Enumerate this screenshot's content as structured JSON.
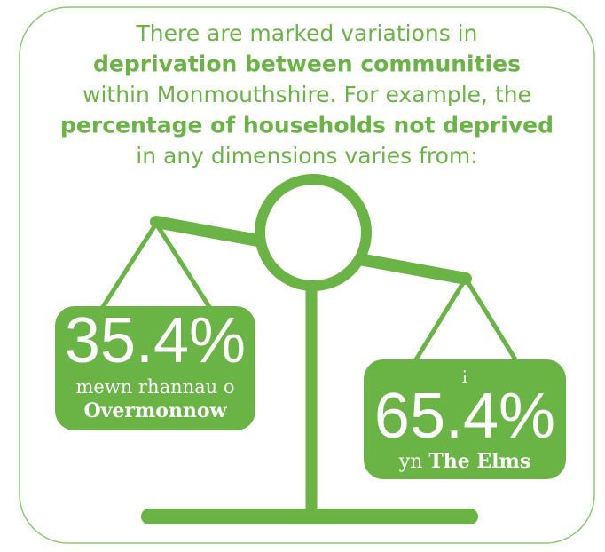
{
  "heading": {
    "lines": [
      [
        {
          "text": "There are marked variations in",
          "bold": false
        }
      ],
      [
        {
          "text": "deprivation between communities",
          "bold": true
        }
      ],
      [
        {
          "text": "within Monmouthshire. For example, the",
          "bold": false
        }
      ],
      [
        {
          "text": "percentage of households not deprived",
          "bold": true
        }
      ],
      [
        {
          "text": "in any dimensions varies from:",
          "bold": false
        }
      ]
    ]
  },
  "left_box": {
    "value": "35.4%",
    "line1": "mewn rhannau o",
    "line2": "Overmonnow"
  },
  "right_box": {
    "prefix": "i",
    "value": "65.4%",
    "line1": "yn",
    "line2": "The Elms"
  }
}
